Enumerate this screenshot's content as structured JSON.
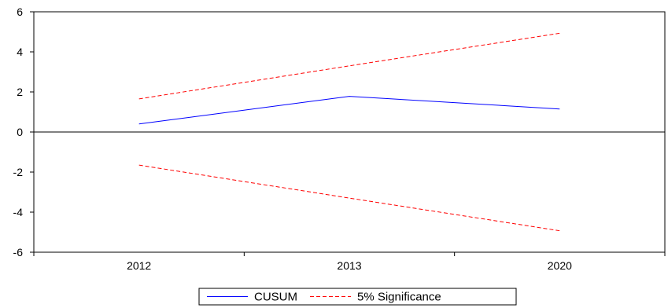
{
  "chart_data": {
    "type": "line",
    "categories": [
      "2012",
      "2013",
      "2020"
    ],
    "ylim": [
      -6,
      6
    ],
    "y_ticks": [
      "6",
      "4",
      "2",
      "0",
      "-2",
      "-4",
      "-6"
    ],
    "series": [
      {
        "name": "CUSUM",
        "values": [
          0.4,
          1.78,
          1.15
        ],
        "color": "#0000ff",
        "dash": "solid"
      },
      {
        "name": "5% Significance",
        "values": [
          1.65,
          3.3,
          4.93
        ],
        "color": "#ff0000",
        "dash": "dashed"
      },
      {
        "name": "",
        "values": [
          -1.65,
          -3.3,
          -4.93
        ],
        "color": "#ff0000",
        "dash": "dashed"
      }
    ],
    "zero_line": true,
    "legend_position": "bottom-center",
    "grid": false
  }
}
